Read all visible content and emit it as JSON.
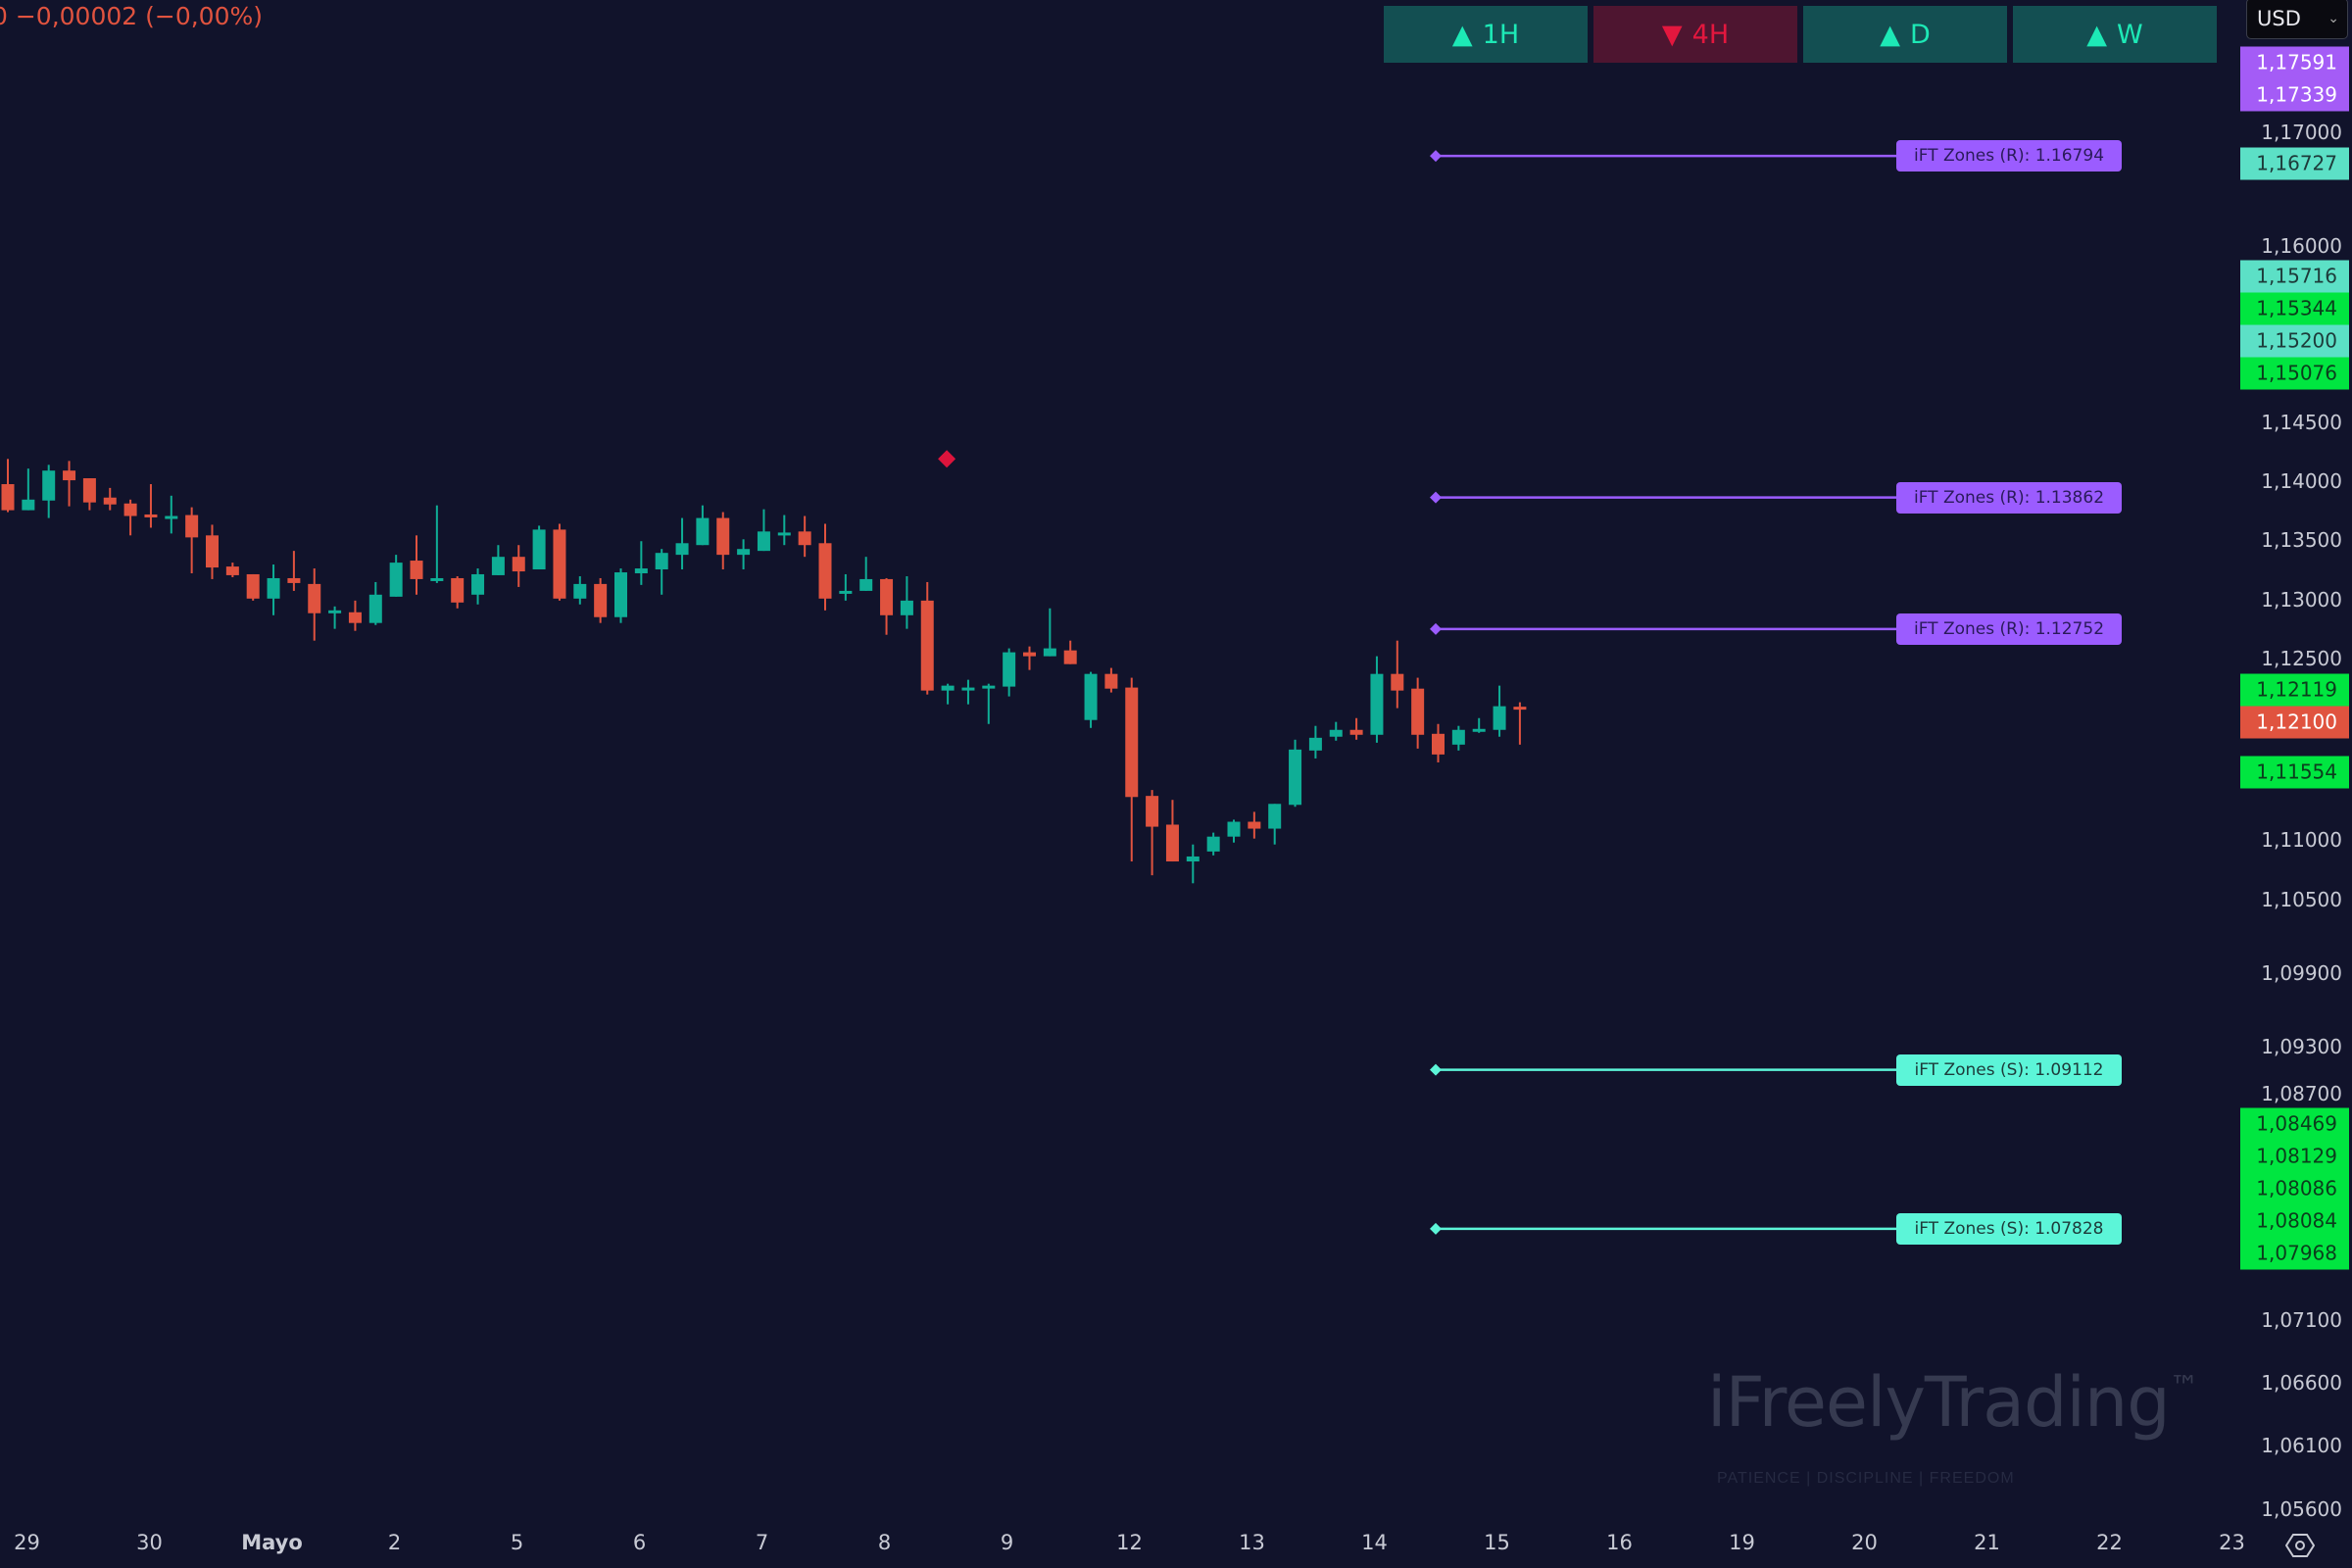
{
  "header": {
    "change_text": "0 −0,00002 (−0,00%)"
  },
  "timeframes": [
    {
      "label": "1H",
      "direction": "up"
    },
    {
      "label": "4H",
      "direction": "down"
    },
    {
      "label": "D",
      "direction": "up"
    },
    {
      "label": "W",
      "direction": "up"
    }
  ],
  "currency": {
    "value": "USD"
  },
  "price_axis": {
    "ticks": [
      "1,17000",
      "1,16000",
      "1,14500",
      "1,14000",
      "1,13500",
      "1,13000",
      "1,12500",
      "1,11000",
      "1,10500",
      "1,09900",
      "1,09300",
      "1,08700",
      "1,07100",
      "1,06600",
      "1,06100",
      "1,05600"
    ],
    "labels": [
      {
        "text": "1,17591",
        "kind": "purple"
      },
      {
        "text": "1,17339",
        "kind": "purple"
      },
      {
        "text": "1,16727",
        "kind": "teal"
      },
      {
        "text": "1,15716",
        "kind": "teal"
      },
      {
        "text": "1,15344",
        "kind": "green"
      },
      {
        "text": "1,15200",
        "kind": "teal"
      },
      {
        "text": "1,15076",
        "kind": "green"
      },
      {
        "text": "1,12119",
        "kind": "green"
      },
      {
        "text": "1,12100",
        "kind": "red"
      },
      {
        "text": "1,11554",
        "kind": "green"
      },
      {
        "text": "1,08469",
        "kind": "green"
      },
      {
        "text": "1,08129",
        "kind": "green"
      },
      {
        "text": "1,08086",
        "kind": "green"
      },
      {
        "text": "1,08084",
        "kind": "green"
      },
      {
        "text": "1,07968",
        "kind": "green"
      }
    ]
  },
  "time_axis": {
    "labels": [
      "29",
      "30",
      "Mayo",
      "2",
      "5",
      "6",
      "7",
      "8",
      "9",
      "12",
      "13",
      "14",
      "15",
      "16",
      "19",
      "20",
      "21",
      "22",
      "23"
    ]
  },
  "zones": [
    {
      "label": "iFT Zones (R): 1.16794",
      "price": 1.16794,
      "type": "R"
    },
    {
      "label": "iFT Zones (R): 1.13862",
      "price": 1.13862,
      "type": "R"
    },
    {
      "label": "iFT Zones (R): 1.12752",
      "price": 1.12752,
      "type": "R"
    },
    {
      "label": "iFT Zones (S): 1.09112",
      "price": 1.09112,
      "type": "S"
    },
    {
      "label": "iFT Zones (S): 1.07828",
      "price": 1.07828,
      "type": "S"
    }
  ],
  "watermark": {
    "brand": "iFreelyTrading",
    "tm": "™",
    "tagline": "PATIENCE  |  DISCIPLINE  |  FREEDOM"
  },
  "colors": {
    "background": "#11132b",
    "up": "#0fae96",
    "down": "#e0533f",
    "zone_r": "#9b5cff",
    "zone_s": "#5cf5d8",
    "label_purple": "#a45cf6",
    "label_teal": "#5ce0c6",
    "label_green": "#00e640",
    "label_red": "#e0533f",
    "signal": "#dc143c"
  },
  "chart_data": {
    "type": "candlestick",
    "title": "",
    "ylabel": "USD",
    "ylim": [
      1.056,
      1.176
    ],
    "x_tick_labels": [
      "29",
      "30",
      "Mayo",
      "2",
      "5",
      "6",
      "7",
      "8",
      "9",
      "12",
      "13",
      "14",
      "15",
      "16",
      "19",
      "20",
      "21",
      "22",
      "23"
    ],
    "candle_fields": [
      "open",
      "high",
      "low",
      "close"
    ],
    "candles": [
      [
        1.13975,
        1.14189,
        1.13738,
        1.13754
      ],
      [
        1.13754,
        1.14107,
        1.13754,
        1.13844
      ],
      [
        1.13836,
        1.14139,
        1.13688,
        1.1409
      ],
      [
        1.1409,
        1.14172,
        1.13787,
        1.14008
      ],
      [
        1.14025,
        1.14025,
        1.13754,
        1.1382
      ],
      [
        1.13861,
        1.13943,
        1.13754,
        1.13803
      ],
      [
        1.13811,
        1.13844,
        1.13541,
        1.13705
      ],
      [
        1.13718,
        1.13975,
        1.13606,
        1.13713
      ],
      [
        1.137,
        1.13877,
        1.13557,
        1.13705
      ],
      [
        1.13713,
        1.13779,
        1.13221,
        1.13524
      ],
      [
        1.13541,
        1.13631,
        1.13172,
        1.1327
      ],
      [
        1.13278,
        1.13311,
        1.13188,
        1.13205
      ],
      [
        1.13213,
        1.13213,
        1.12991,
        1.13008
      ],
      [
        1.13008,
        1.13295,
        1.12868,
        1.1318
      ],
      [
        1.1318,
        1.1341,
        1.13073,
        1.13139
      ],
      [
        1.13131,
        1.13262,
        1.12655,
        1.12885
      ],
      [
        1.12905,
        1.12942,
        1.12754,
        1.12909
      ],
      [
        1.12893,
        1.12991,
        1.12737,
        1.12803
      ],
      [
        1.12803,
        1.13147,
        1.12786,
        1.13041
      ],
      [
        1.13024,
        1.13377,
        1.13024,
        1.13311
      ],
      [
        1.13328,
        1.13541,
        1.13041,
        1.13172
      ],
      [
        1.13176,
        1.13795,
        1.13139,
        1.1318
      ],
      [
        1.1318,
        1.13196,
        1.12926,
        1.12975
      ],
      [
        1.13041,
        1.13262,
        1.12959,
        1.13213
      ],
      [
        1.13205,
        1.13459,
        1.13205,
        1.1336
      ],
      [
        1.1336,
        1.13459,
        1.13106,
        1.13237
      ],
      [
        1.13254,
        1.13623,
        1.13254,
        1.1359
      ],
      [
        1.1359,
        1.13639,
        1.12991,
        1.13008
      ],
      [
        1.13008,
        1.13196,
        1.12959,
        1.13131
      ],
      [
        1.13131,
        1.1318,
        1.12803,
        1.12852
      ],
      [
        1.12852,
        1.13262,
        1.12803,
        1.13229
      ],
      [
        1.13221,
        1.13492,
        1.13123,
        1.13262
      ],
      [
        1.13254,
        1.13426,
        1.13041,
        1.13393
      ],
      [
        1.13377,
        1.13688,
        1.13254,
        1.13475
      ],
      [
        1.13459,
        1.13795,
        1.13459,
        1.13688
      ],
      [
        1.13688,
        1.13738,
        1.13254,
        1.13377
      ],
      [
        1.13377,
        1.13508,
        1.13254,
        1.13426
      ],
      [
        1.1341,
        1.13762,
        1.1341,
        1.13574
      ],
      [
        1.13561,
        1.13713,
        1.13459,
        1.13565
      ],
      [
        1.13574,
        1.13705,
        1.1336,
        1.13459
      ],
      [
        1.13475,
        1.13639,
        1.12909,
        1.13008
      ],
      [
        1.13069,
        1.13213,
        1.12991,
        1.13073
      ],
      [
        1.13073,
        1.1336,
        1.13073,
        1.13172
      ],
      [
        1.13172,
        1.1318,
        1.12704,
        1.12868
      ],
      [
        1.12868,
        1.13196,
        1.12754,
        1.12991
      ],
      [
        1.12991,
        1.13147,
        1.12204,
        1.12237
      ],
      [
        1.12237,
        1.12294,
        1.12122,
        1.12278
      ],
      [
        1.12257,
        1.12327,
        1.12122,
        1.12262
      ],
      [
        1.12274,
        1.12294,
        1.11958,
        1.12278
      ],
      [
        1.1227,
        1.1259,
        1.12188,
        1.12557
      ],
      [
        1.12557,
        1.12606,
        1.12409,
        1.12524
      ],
      [
        1.12524,
        1.12926,
        1.12524,
        1.1259
      ],
      [
        1.12573,
        1.12655,
        1.12458,
        1.12458
      ],
      [
        1.11991,
        1.12393,
        1.11925,
        1.12376
      ],
      [
        1.12376,
        1.12426,
        1.12221,
        1.12253
      ],
      [
        1.12262,
        1.12344,
        1.10818,
        1.11351
      ],
      [
        1.1136,
        1.11409,
        1.10704,
        1.11105
      ],
      [
        1.11122,
        1.11327,
        1.10818,
        1.10818
      ],
      [
        1.10818,
        1.10958,
        1.10638,
        1.10859
      ],
      [
        1.109,
        1.11056,
        1.10868,
        1.11023
      ],
      [
        1.11023,
        1.11163,
        1.10974,
        1.11146
      ],
      [
        1.11146,
        1.11228,
        1.11007,
        1.11089
      ],
      [
        1.11089,
        1.11294,
        1.10958,
        1.11294
      ],
      [
        1.11286,
        1.11827,
        1.1127,
        1.11745
      ],
      [
        1.11737,
        1.11942,
        1.11671,
        1.11843
      ],
      [
        1.11852,
        1.11975,
        1.11819,
        1.11909
      ],
      [
        1.11909,
        1.12007,
        1.11827,
        1.11868
      ],
      [
        1.11868,
        1.12524,
        1.11802,
        1.12376
      ],
      [
        1.12376,
        1.12655,
        1.1209,
        1.12237
      ],
      [
        1.12253,
        1.12344,
        1.11753,
        1.11868
      ],
      [
        1.11876,
        1.11958,
        1.11638,
        1.11704
      ],
      [
        1.11786,
        1.11942,
        1.11737,
        1.11909
      ],
      [
        1.11913,
        1.12007,
        1.11884,
        1.11917
      ],
      [
        1.11909,
        1.12278,
        1.11852,
        1.12106
      ],
      [
        1.12102,
        1.12139,
        1.11786,
        1.12098
      ]
    ],
    "signal_marker": {
      "candle_index": 46,
      "price": 1.1419,
      "shape": "diamond"
    }
  }
}
